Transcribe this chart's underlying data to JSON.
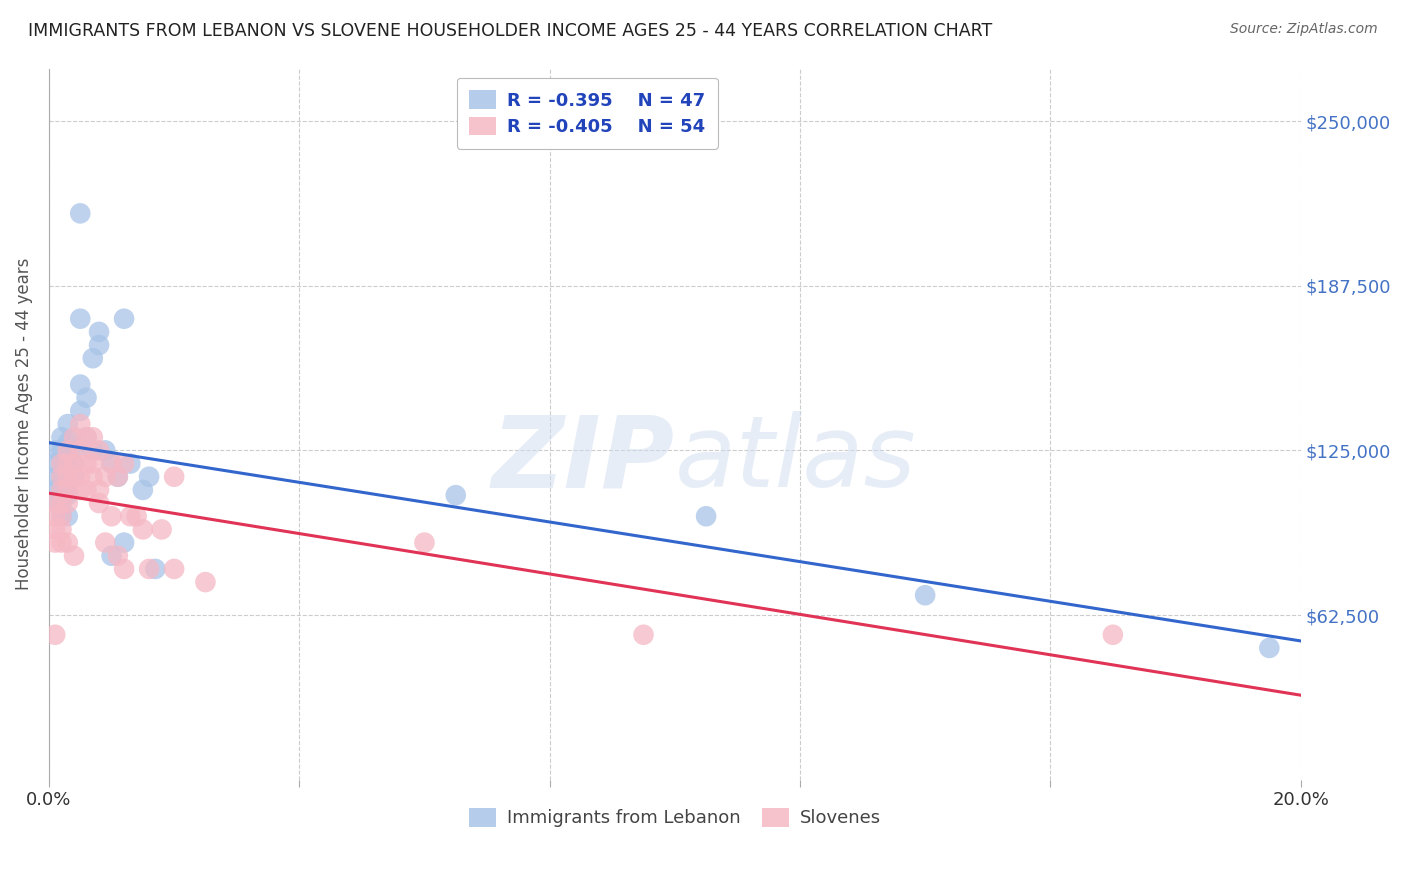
{
  "title": "IMMIGRANTS FROM LEBANON VS SLOVENE HOUSEHOLDER INCOME AGES 25 - 44 YEARS CORRELATION CHART",
  "source": "Source: ZipAtlas.com",
  "ylabel_label": "Householder Income Ages 25 - 44 years",
  "legend_label1": "Immigrants from Lebanon",
  "legend_label2": "Slovenes",
  "r1": "-0.395",
  "n1": "47",
  "r2": "-0.405",
  "n2": "54",
  "color1": "#a8c4e8",
  "color2": "#f5b8c4",
  "line_color1": "#3366cc",
  "line_color2": "#e03355",
  "ytick_labels": [
    "$250,000",
    "$187,500",
    "$125,000",
    "$62,500"
  ],
  "ytick_values": [
    250000,
    187500,
    125000,
    62500
  ],
  "ymin": 0,
  "ymax": 270000,
  "xmin": 0.0,
  "xmax": 0.2,
  "background_color": "#ffffff",
  "grid_color": "#cccccc",
  "title_color": "#222222",
  "ylabel_color": "#555555",
  "ytick_color": "#4472c4",
  "source_color": "#666666",
  "lebanon_x": [
    0.001,
    0.001,
    0.001,
    0.001,
    0.001,
    0.002,
    0.002,
    0.002,
    0.002,
    0.002,
    0.002,
    0.002,
    0.003,
    0.003,
    0.003,
    0.003,
    0.003,
    0.003,
    0.003,
    0.004,
    0.004,
    0.004,
    0.004,
    0.005,
    0.005,
    0.005,
    0.005,
    0.006,
    0.006,
    0.007,
    0.007,
    0.008,
    0.008,
    0.009,
    0.01,
    0.01,
    0.011,
    0.012,
    0.012,
    0.013,
    0.015,
    0.016,
    0.017,
    0.065,
    0.105,
    0.14,
    0.195
  ],
  "lebanon_y": [
    125000,
    120000,
    115000,
    110000,
    105000,
    130000,
    125000,
    120000,
    115000,
    110000,
    105000,
    100000,
    135000,
    128000,
    122000,
    118000,
    112000,
    108000,
    100000,
    130000,
    125000,
    120000,
    115000,
    150000,
    140000,
    175000,
    215000,
    145000,
    130000,
    160000,
    125000,
    170000,
    165000,
    125000,
    120000,
    85000,
    115000,
    175000,
    90000,
    120000,
    110000,
    115000,
    80000,
    108000,
    100000,
    70000,
    50000
  ],
  "slovene_x": [
    0.001,
    0.001,
    0.001,
    0.001,
    0.001,
    0.002,
    0.002,
    0.002,
    0.002,
    0.002,
    0.002,
    0.002,
    0.003,
    0.003,
    0.003,
    0.003,
    0.003,
    0.003,
    0.004,
    0.004,
    0.004,
    0.004,
    0.005,
    0.005,
    0.005,
    0.005,
    0.006,
    0.006,
    0.006,
    0.007,
    0.007,
    0.007,
    0.008,
    0.008,
    0.008,
    0.009,
    0.009,
    0.01,
    0.01,
    0.011,
    0.011,
    0.012,
    0.012,
    0.013,
    0.014,
    0.015,
    0.016,
    0.018,
    0.02,
    0.02,
    0.025,
    0.06,
    0.095,
    0.17
  ],
  "slovene_y": [
    105000,
    100000,
    95000,
    90000,
    55000,
    120000,
    115000,
    110000,
    105000,
    100000,
    95000,
    90000,
    125000,
    120000,
    115000,
    110000,
    105000,
    90000,
    130000,
    120000,
    115000,
    85000,
    135000,
    125000,
    115000,
    110000,
    130000,
    120000,
    110000,
    130000,
    120000,
    115000,
    125000,
    110000,
    105000,
    115000,
    90000,
    120000,
    100000,
    115000,
    85000,
    120000,
    80000,
    100000,
    100000,
    95000,
    80000,
    95000,
    115000,
    80000,
    75000,
    90000,
    55000,
    55000
  ]
}
